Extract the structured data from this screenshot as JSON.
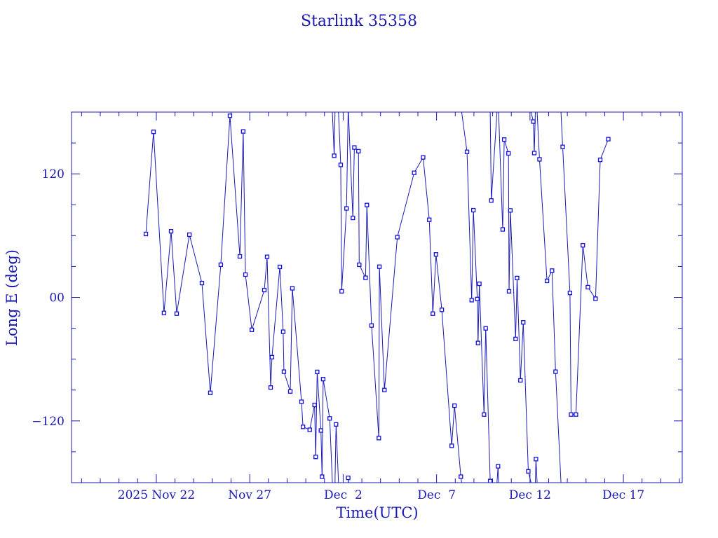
{
  "chart_data": {
    "type": "line",
    "title": "Starlink 35358",
    "xlabel": "Time(UTC)",
    "ylabel": "Long E (deg)",
    "x_units": "days since 2025 Nov 22 00:00 UTC",
    "xlim": [
      -4.54,
      28.15
    ],
    "ylim": [
      -180,
      180
    ],
    "x_ticks": [
      {
        "value": 0,
        "label": "2025 Nov 22"
      },
      {
        "value": 5,
        "label": "Nov 27"
      },
      {
        "value": 10,
        "label": "Dec  2"
      },
      {
        "value": 15,
        "label": "Dec  7"
      },
      {
        "value": 20,
        "label": "Dec 12"
      },
      {
        "value": 25,
        "label": "Dec 17"
      }
    ],
    "y_ticks": [
      {
        "value": 120,
        "label": "120"
      },
      {
        "value": 0,
        "label": "00"
      },
      {
        "value": -120,
        "label": "−120"
      }
    ],
    "color": "#1a1ab4",
    "grid": false,
    "series": [
      {
        "name": "Long E",
        "x": [
          -0.56,
          -0.15,
          0.41,
          0.79,
          1.09,
          1.77,
          2.44,
          2.89,
          3.45,
          3.94,
          4.47,
          4.65,
          4.77,
          5.11,
          5.78,
          5.93,
          6.12,
          6.19,
          6.61,
          6.79,
          6.83,
          7.17,
          7.28,
          7.77,
          7.85,
          8.21,
          8.47,
          8.53,
          8.61,
          8.81,
          8.87,
          8.93,
          9.28,
          9.52,
          9.62,
          9.87,
          9.92,
          10.18,
          10.27,
          10.52,
          10.6,
          10.82,
          10.86,
          11.2,
          11.27,
          11.52,
          11.91,
          11.94,
          12.21,
          12.9,
          13.8,
          14.28,
          14.61,
          14.8,
          14.97,
          15.28,
          15.81,
          15.96,
          16.3,
          16.63,
          16.88,
          16.97,
          17.18,
          17.22,
          17.29,
          17.54,
          17.63,
          17.87,
          17.93,
          18.29,
          18.54,
          18.62,
          18.85,
          18.88,
          18.95,
          19.23,
          19.31,
          19.49,
          19.64,
          19.91,
          20.18,
          20.23,
          20.32,
          20.51,
          20.91,
          21.18,
          21.37,
          21.75,
          22.14,
          22.2,
          22.46,
          22.83,
          23.1,
          23.51,
          23.76,
          24.19
        ],
        "y": [
          61.6,
          160.8,
          -15.1,
          64.2,
          -15.8,
          60.9,
          13.9,
          -92.7,
          31.7,
          176.4,
          39.8,
          161.2,
          22.1,
          -31.5,
          7.1,
          39.4,
          -87.6,
          -58.1,
          29.6,
          -33.4,
          -72.2,
          -91.4,
          8.8,
          -101.4,
          -125.8,
          -128.6,
          -104.5,
          -155.0,
          -72.4,
          -129.3,
          -174.2,
          -79.4,
          -117.6,
          137.6,
          -123.4,
          128.7,
          5.9,
          86.4,
          -175.3,
          77.2,
          145.6,
          142.0,
          31.7,
          19.0,
          89.7,
          -27.3,
          -136.7,
          29.8,
          -90.0,
          58.5,
          121.0,
          136.0,
          75.4,
          -15.8,
          41.7,
          -12.1,
          -144.2,
          -105.2,
          -174.2,
          141.4,
          -2.7,
          84.7,
          -1.6,
          -44.3,
          13.2,
          -113.8,
          -30.1,
          -178.4,
          94.1,
          -164.1,
          66.0,
          153.3,
          139.9,
          5.9,
          84.5,
          -40.4,
          18.8,
          -80.6,
          -24.3,
          -169.0,
          170.8,
          140.2,
          -157.1,
          134.1,
          16.0,
          26.0,
          -72.2,
          146.2,
          4.3,
          -113.8,
          -113.8,
          50.6,
          9.9,
          -1.3,
          133.6,
          153.7
        ]
      }
    ]
  }
}
